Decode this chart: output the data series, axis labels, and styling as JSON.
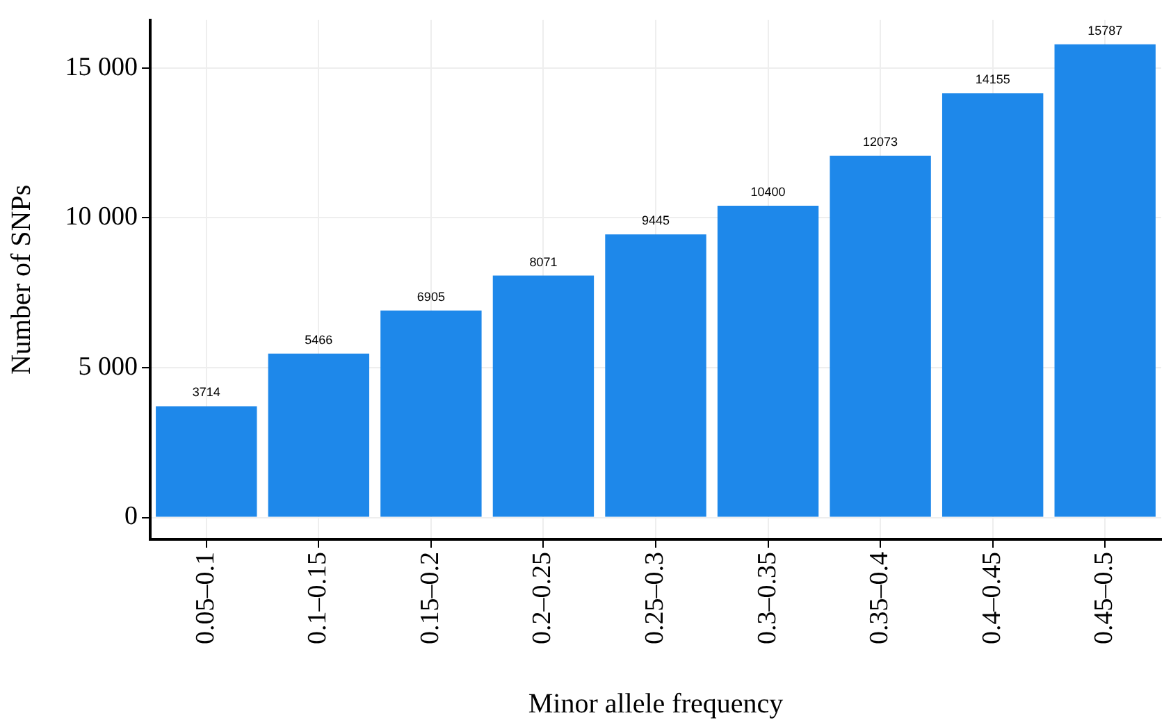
{
  "chart_data": {
    "type": "bar",
    "xlabel": "Minor allele frequency",
    "ylabel": "Number of SNPs",
    "categories": [
      "0.05–0.1",
      "0.1–0.15",
      "0.15–0.2",
      "0.2–0.25",
      "0.25–0.3",
      "0.3–0.35",
      "0.35–0.4",
      "0.4–0.45",
      "0.45–0.5"
    ],
    "values": [
      3714,
      5466,
      6905,
      8071,
      9445,
      10400,
      12073,
      14155,
      15787
    ],
    "color": "#1e88ea",
    "ylim": [
      -730,
      16600
    ],
    "yticks": [
      0,
      {
        "value": 5000,
        "label": "5 000"
      },
      {
        "value": 10000,
        "label": "10 000"
      },
      {
        "value": 15000,
        "label": "15 000"
      }
    ],
    "grid": true,
    "data_labels": true
  }
}
